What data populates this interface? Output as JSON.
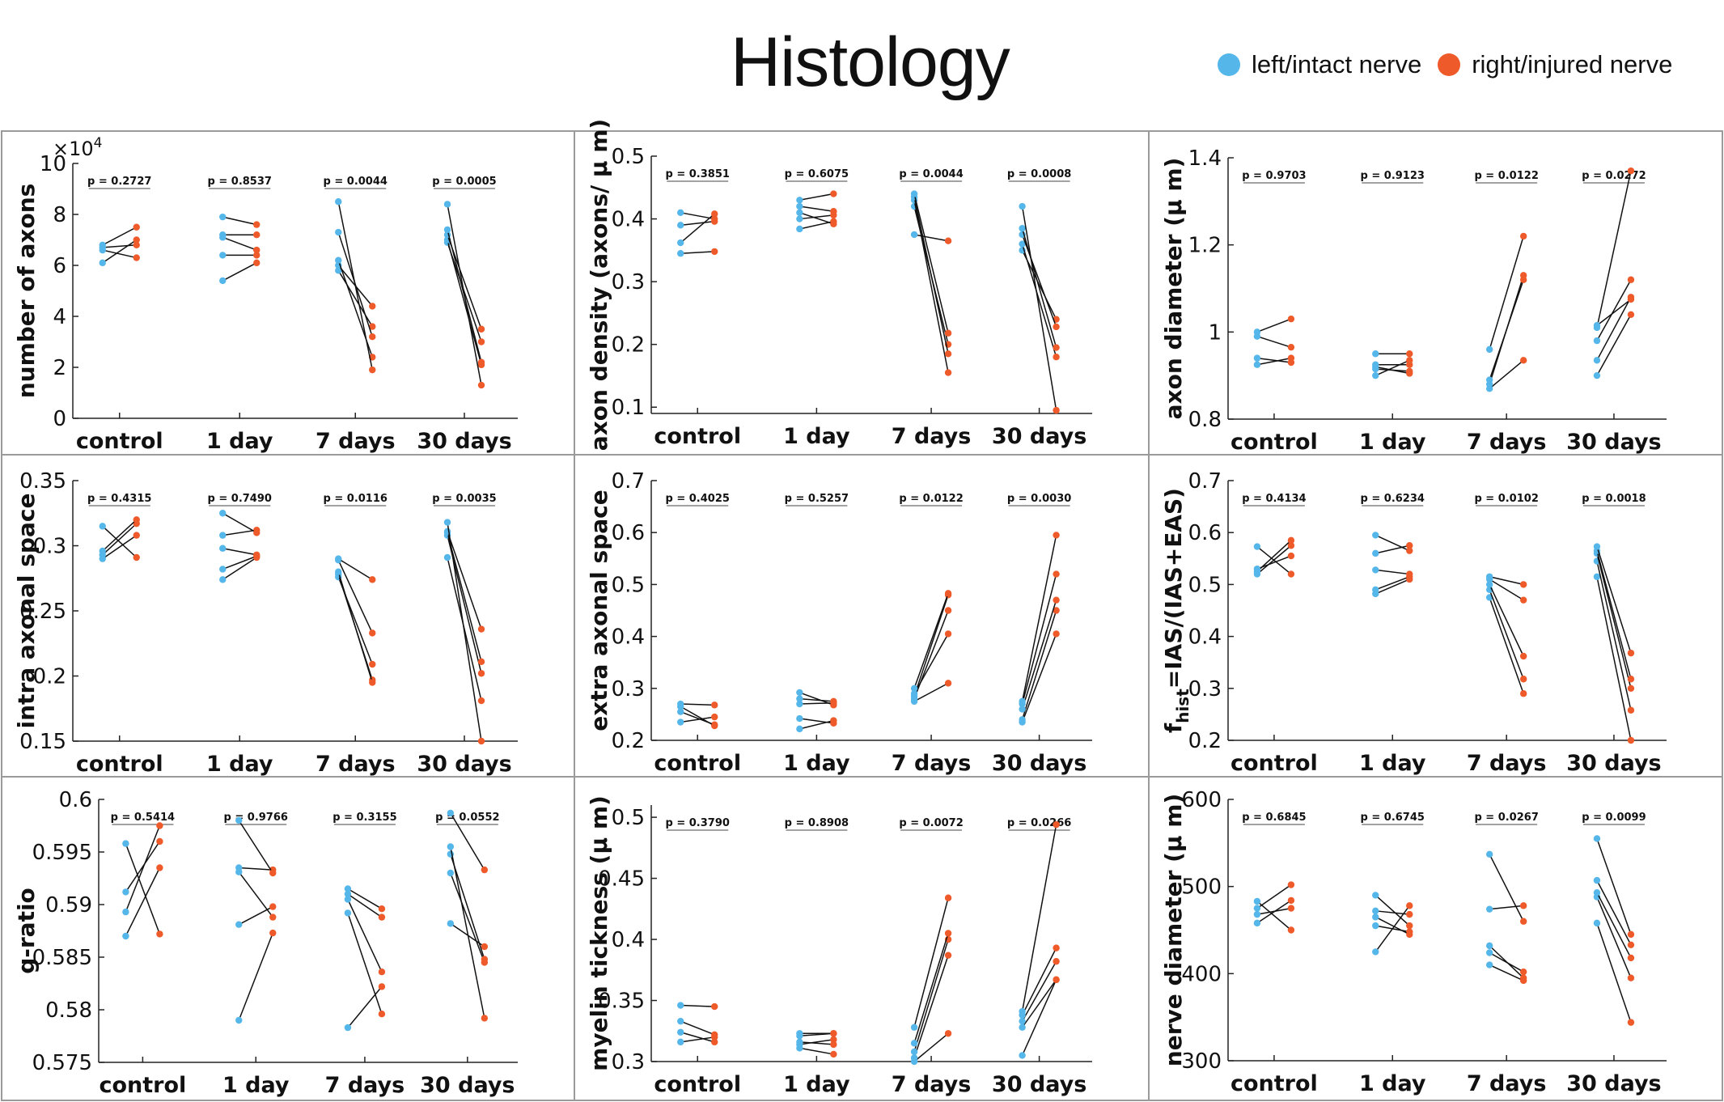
{
  "figure_title": "Histology",
  "legend": {
    "items": [
      {
        "label": "left/intact nerve",
        "color": "#55b6ea"
      },
      {
        "label": "right/injured nerve",
        "color": "#ef5a2a"
      }
    ]
  },
  "chart_data": [
    {
      "type": "scatter",
      "ylabel": "number of axons",
      "yscale_label": "×10",
      "yscale_exp": "4",
      "ylim": [
        0,
        10
      ],
      "yticks": [
        0,
        2,
        4,
        6,
        8,
        10
      ],
      "categories": [
        "control",
        "1 day",
        "7 days",
        "30 days"
      ],
      "p_values": [
        "p = 0.2727",
        "p = 0.8537",
        "p = 0.0044",
        "p = 0.0005"
      ],
      "pairs": [
        [
          [
            6.1,
            7.0
          ],
          [
            6.6,
            6.3
          ],
          [
            6.7,
            6.8
          ],
          [
            6.8,
            7.5
          ]
        ],
        [
          [
            5.4,
            6.1
          ],
          [
            6.4,
            6.4
          ],
          [
            7.1,
            6.6
          ],
          [
            7.2,
            7.2
          ],
          [
            7.9,
            7.6
          ]
        ],
        [
          [
            5.8,
            3.6
          ],
          [
            6.0,
            4.4
          ],
          [
            6.2,
            2.4
          ],
          [
            7.3,
            3.2
          ],
          [
            8.5,
            1.9
          ]
        ],
        [
          [
            6.9,
            3.0
          ],
          [
            7.0,
            2.1
          ],
          [
            7.2,
            3.5
          ],
          [
            7.4,
            2.2
          ],
          [
            8.4,
            1.3
          ]
        ]
      ]
    },
    {
      "type": "scatter",
      "ylabel": "axon density (axons/ μ m)",
      "ylim": [
        0.09,
        0.5
      ],
      "yticks": [
        0.1,
        0.2,
        0.3,
        0.4,
        0.5
      ],
      "categories": [
        "control",
        "1 day",
        "7 days",
        "30 days"
      ],
      "p_values": [
        "p = 0.3851",
        "p = 0.6075",
        "p = 0.0044",
        "p = 0.0008"
      ],
      "pairs": [
        [
          [
            0.345,
            0.348
          ],
          [
            0.362,
            0.408
          ],
          [
            0.39,
            0.396
          ],
          [
            0.41,
            0.4
          ]
        ],
        [
          [
            0.384,
            0.396
          ],
          [
            0.4,
            0.406
          ],
          [
            0.41,
            0.392
          ],
          [
            0.42,
            0.412
          ],
          [
            0.43,
            0.44
          ]
        ],
        [
          [
            0.375,
            0.365
          ],
          [
            0.42,
            0.2
          ],
          [
            0.43,
            0.155
          ],
          [
            0.435,
            0.185
          ],
          [
            0.44,
            0.218
          ]
        ],
        [
          [
            0.35,
            0.24
          ],
          [
            0.36,
            0.18
          ],
          [
            0.375,
            0.228
          ],
          [
            0.385,
            0.195
          ],
          [
            0.42,
            0.095
          ]
        ]
      ]
    },
    {
      "type": "scatter",
      "ylabel": "axon diameter (μ m)",
      "ylim": [
        0.8,
        1.4
      ],
      "yticks": [
        0.8,
        1,
        1.2,
        1.4
      ],
      "ytick_labels": [
        "0.8",
        "1",
        "1.2",
        "1.4"
      ],
      "categories": [
        "control",
        "1 day",
        "7 days",
        "30 days"
      ],
      "p_values": [
        "p = 0.9703",
        "p = 0.9123",
        "p = 0.0122",
        "p = 0.0272"
      ],
      "pairs": [
        [
          [
            0.925,
            0.94
          ],
          [
            0.94,
            0.93
          ],
          [
            0.99,
            0.965
          ],
          [
            1.0,
            1.03
          ]
        ],
        [
          [
            0.9,
            0.935
          ],
          [
            0.915,
            0.91
          ],
          [
            0.92,
            0.905
          ],
          [
            0.925,
            0.925
          ],
          [
            0.95,
            0.95
          ]
        ],
        [
          [
            0.87,
            0.935
          ],
          [
            0.88,
            1.13
          ],
          [
            0.89,
            1.12
          ],
          [
            0.96,
            1.22
          ]
        ],
        [
          [
            0.9,
            1.04
          ],
          [
            0.935,
            1.08
          ],
          [
            0.98,
            1.12
          ],
          [
            1.01,
            1.37
          ],
          [
            1.015,
            1.075
          ]
        ]
      ]
    },
    {
      "type": "scatter",
      "ylabel": "intra axonal space",
      "ylim": [
        0.15,
        0.35
      ],
      "yticks": [
        0.15,
        0.2,
        0.25,
        0.3,
        0.35
      ],
      "categories": [
        "control",
        "1 day",
        "7 days",
        "30 days"
      ],
      "p_values": [
        "p = 0.4315",
        "p = 0.7490",
        "p = 0.0116",
        "p = 0.0035"
      ],
      "pairs": [
        [
          [
            0.29,
            0.308
          ],
          [
            0.293,
            0.317
          ],
          [
            0.296,
            0.32
          ],
          [
            0.315,
            0.291
          ]
        ],
        [
          [
            0.274,
            0.291
          ],
          [
            0.282,
            0.292
          ],
          [
            0.298,
            0.293
          ],
          [
            0.308,
            0.312
          ],
          [
            0.325,
            0.31
          ]
        ],
        [
          [
            0.276,
            0.209
          ],
          [
            0.278,
            0.197
          ],
          [
            0.28,
            0.195
          ],
          [
            0.289,
            0.233
          ],
          [
            0.29,
            0.274
          ]
        ],
        [
          [
            0.291,
            0.181
          ],
          [
            0.308,
            0.202
          ],
          [
            0.31,
            0.211
          ],
          [
            0.311,
            0.236
          ],
          [
            0.318,
            0.15
          ]
        ]
      ]
    },
    {
      "type": "scatter",
      "ylabel": "extra axonal space",
      "ylim": [
        0.2,
        0.7
      ],
      "yticks": [
        0.2,
        0.3,
        0.4,
        0.5,
        0.6,
        0.7
      ],
      "categories": [
        "control",
        "1 day",
        "7 days",
        "30 days"
      ],
      "p_values": [
        "p = 0.4025",
        "p = 0.5257",
        "p = 0.0122",
        "p = 0.0030"
      ],
      "pairs": [
        [
          [
            0.235,
            0.245
          ],
          [
            0.255,
            0.23
          ],
          [
            0.265,
            0.228
          ],
          [
            0.27,
            0.268
          ]
        ],
        [
          [
            0.222,
            0.238
          ],
          [
            0.242,
            0.233
          ],
          [
            0.27,
            0.272
          ],
          [
            0.28,
            0.275
          ],
          [
            0.292,
            0.268
          ]
        ],
        [
          [
            0.275,
            0.31
          ],
          [
            0.28,
            0.45
          ],
          [
            0.285,
            0.48
          ],
          [
            0.29,
            0.405
          ],
          [
            0.3,
            0.483
          ]
        ],
        [
          [
            0.235,
            0.405
          ],
          [
            0.24,
            0.45
          ],
          [
            0.26,
            0.47
          ],
          [
            0.27,
            0.52
          ],
          [
            0.275,
            0.595
          ]
        ]
      ]
    },
    {
      "type": "scatter",
      "ylabel": "f_hist=IAS/(IAS+EAS)",
      "ylabel_main": "f",
      "ylabel_sub": "hist",
      "ylabel_rest": "=IAS/(IAS+EAS)",
      "ylim": [
        0.2,
        0.7
      ],
      "yticks": [
        0.2,
        0.3,
        0.4,
        0.5,
        0.6,
        0.7
      ],
      "categories": [
        "control",
        "1 day",
        "7 days",
        "30 days"
      ],
      "p_values": [
        "p = 0.4134",
        "p = 0.6234",
        "p = 0.0102",
        "p = 0.0018"
      ],
      "pairs": [
        [
          [
            0.52,
            0.575
          ],
          [
            0.525,
            0.585
          ],
          [
            0.53,
            0.555
          ],
          [
            0.573,
            0.52
          ]
        ],
        [
          [
            0.482,
            0.51
          ],
          [
            0.49,
            0.515
          ],
          [
            0.528,
            0.52
          ],
          [
            0.56,
            0.575
          ],
          [
            0.595,
            0.565
          ]
        ],
        [
          [
            0.475,
            0.29
          ],
          [
            0.49,
            0.318
          ],
          [
            0.5,
            0.362
          ],
          [
            0.51,
            0.47
          ],
          [
            0.515,
            0.5
          ]
        ],
        [
          [
            0.515,
            0.2
          ],
          [
            0.545,
            0.258
          ],
          [
            0.56,
            0.3
          ],
          [
            0.565,
            0.318
          ],
          [
            0.573,
            0.368
          ]
        ]
      ]
    },
    {
      "type": "scatter",
      "ylabel": "g-ratio",
      "ylim": [
        0.575,
        0.6
      ],
      "yticks": [
        0.575,
        0.58,
        0.585,
        0.59,
        0.595,
        0.6
      ],
      "ytick_labels": [
        "0.575",
        "0.58",
        "0.585",
        "0.59",
        "0.595",
        "0.6"
      ],
      "categories": [
        "control",
        "1 day",
        "7 days",
        "30 days"
      ],
      "p_values": [
        "p = 0.5414",
        "p = 0.9766",
        "p = 0.3155",
        "p = 0.0552"
      ],
      "pairs": [
        [
          [
            0.587,
            0.5935
          ],
          [
            0.5893,
            0.5975
          ],
          [
            0.5912,
            0.596
          ],
          [
            0.5958,
            0.5872
          ]
        ],
        [
          [
            0.579,
            0.5873
          ],
          [
            0.5881,
            0.5898
          ],
          [
            0.5931,
            0.5888
          ],
          [
            0.5935,
            0.5933
          ],
          [
            0.598,
            0.593
          ]
        ],
        [
          [
            0.5783,
            0.5822
          ],
          [
            0.5892,
            0.5796
          ],
          [
            0.5905,
            0.5836
          ],
          [
            0.591,
            0.5888
          ],
          [
            0.5915,
            0.5896
          ]
        ],
        [
          [
            0.5882,
            0.586
          ],
          [
            0.593,
            0.5845
          ],
          [
            0.5948,
            0.5848
          ],
          [
            0.5955,
            0.5792
          ],
          [
            0.5987,
            0.5933
          ]
        ]
      ]
    },
    {
      "type": "scatter",
      "ylabel": "myelin tickness (μ m)",
      "ylim": [
        0.3,
        0.51
      ],
      "yticks": [
        0.3,
        0.35,
        0.4,
        0.45,
        0.5
      ],
      "categories": [
        "control",
        "1 day",
        "7 days",
        "30 days"
      ],
      "p_values": [
        "p = 0.3790",
        "p = 0.8908",
        "p = 0.0072",
        "p = 0.0266"
      ],
      "pairs": [
        [
          [
            0.316,
            0.32
          ],
          [
            0.324,
            0.316
          ],
          [
            0.333,
            0.322
          ],
          [
            0.346,
            0.345
          ]
        ],
        [
          [
            0.311,
            0.306
          ],
          [
            0.314,
            0.318
          ],
          [
            0.316,
            0.314
          ],
          [
            0.321,
            0.323
          ],
          [
            0.323,
            0.323
          ]
        ],
        [
          [
            0.3,
            0.323
          ],
          [
            0.303,
            0.387
          ],
          [
            0.308,
            0.4
          ],
          [
            0.315,
            0.405
          ],
          [
            0.328,
            0.434
          ]
        ],
        [
          [
            0.305,
            0.367
          ],
          [
            0.328,
            0.367
          ],
          [
            0.333,
            0.382
          ],
          [
            0.338,
            0.393
          ],
          [
            0.341,
            0.494
          ]
        ]
      ]
    },
    {
      "type": "scatter",
      "ylabel": "nerve diameter (μ m)",
      "ylim": [
        300,
        600
      ],
      "yticks": [
        300,
        400,
        500,
        600
      ],
      "categories": [
        "control",
        "1 day",
        "7 days",
        "30 days"
      ],
      "p_values": [
        "p = 0.6845",
        "p = 0.6745",
        "p = 0.0267",
        "p = 0.0099"
      ],
      "pairs": [
        [
          [
            458,
            484
          ],
          [
            468,
            475
          ],
          [
            475,
            502
          ],
          [
            483,
            450
          ]
        ],
        [
          [
            425,
            478
          ],
          [
            455,
            448
          ],
          [
            465,
            445
          ],
          [
            472,
            468
          ],
          [
            490,
            455
          ]
        ],
        [
          [
            410,
            392
          ],
          [
            424,
            402
          ],
          [
            432,
            395
          ],
          [
            474,
            478
          ],
          [
            537,
            460
          ]
        ],
        [
          [
            458,
            344
          ],
          [
            488,
            395
          ],
          [
            493,
            418
          ],
          [
            507,
            433
          ],
          [
            555,
            445
          ]
        ]
      ]
    }
  ]
}
